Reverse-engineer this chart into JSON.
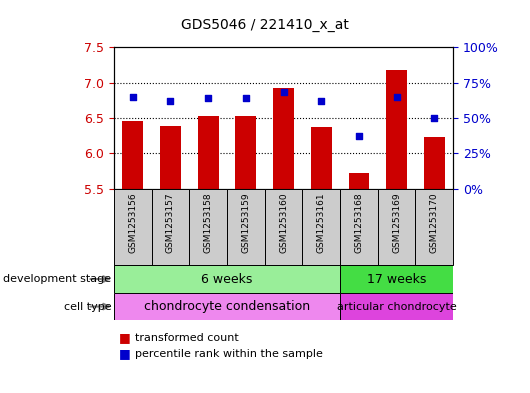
{
  "title": "GDS5046 / 221410_x_at",
  "samples": [
    "GSM1253156",
    "GSM1253157",
    "GSM1253158",
    "GSM1253159",
    "GSM1253160",
    "GSM1253161",
    "GSM1253168",
    "GSM1253169",
    "GSM1253170"
  ],
  "transformed_count": [
    6.46,
    6.38,
    6.52,
    6.52,
    6.92,
    6.37,
    5.72,
    7.18,
    6.23
  ],
  "percentile_rank": [
    65,
    62,
    64,
    64,
    68,
    62,
    37,
    65,
    50
  ],
  "y_min": 5.5,
  "y_max": 7.5,
  "y_ticks": [
    5.5,
    6.0,
    6.5,
    7.0,
    7.5
  ],
  "y2_ticks": [
    0,
    25,
    50,
    75,
    100
  ],
  "y2_labels": [
    "0%",
    "25%",
    "50%",
    "75%",
    "100%"
  ],
  "grid_lines": [
    6.0,
    6.5,
    7.0
  ],
  "bar_color": "#cc0000",
  "dot_color": "#0000cc",
  "bar_bottom": 5.5,
  "group1_samples": 6,
  "group2_samples": 3,
  "dev_stage_label1": "6 weeks",
  "dev_stage_label2": "17 weeks",
  "cell_type_label1": "chondrocyte condensation",
  "cell_type_label2": "articular chondrocyte",
  "dev_stage_color1": "#99ee99",
  "dev_stage_color2": "#44dd44",
  "cell_type_color1": "#ee88ee",
  "cell_type_color2": "#dd44dd",
  "left_label_dev": "development stage",
  "left_label_cell": "cell type",
  "legend_red": "transformed count",
  "legend_blue": "percentile rank within the sample",
  "bar_color_red": "#cc0000",
  "dot_color_blue": "#0000cc",
  "tick_label_color_left": "#cc0000",
  "tick_label_color_right": "#0000cc",
  "xtick_bg": "#cccccc",
  "fig_bg": "#ffffff"
}
